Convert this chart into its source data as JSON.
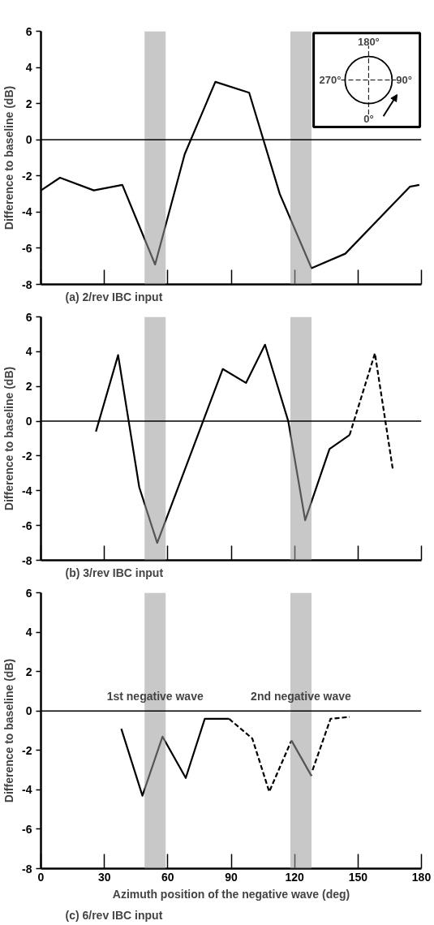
{
  "chart_data": [
    {
      "type": "line",
      "title": "(a)  2/rev IBC input",
      "ylabel": "Difference to baseline (dB)",
      "xlim": [
        0,
        180
      ],
      "ylim": [
        -8,
        6
      ],
      "xticks": [
        0,
        30,
        60,
        90,
        120,
        150,
        180
      ],
      "yticks": [
        -8,
        -6,
        -4,
        -2,
        0,
        2,
        4,
        6
      ],
      "tick_labels": "y",
      "grid": false,
      "line_style": "solid",
      "series": [
        {
          "color": "#000000",
          "x": [
            0,
            9,
            25,
            38.5,
            54,
            68,
            82.5,
            98.5,
            113,
            128,
            144,
            174.5,
            179
          ],
          "values": [
            -2.8,
            -2.1,
            -2.8,
            -2.5,
            -6.9,
            -0.8,
            3.2,
            2.6,
            -3.0,
            -7.1,
            -6.3,
            -2.6,
            -2.5
          ]
        }
      ],
      "ref_lines": [
        {
          "axis": "y",
          "value": 0,
          "color": "#000000"
        }
      ],
      "bands": [
        {
          "axis": "x",
          "from": 49,
          "to": 59,
          "color": "#9a9a9a"
        },
        {
          "axis": "x",
          "from": 118,
          "to": 128,
          "color": "#9a9a9a"
        }
      ],
      "annotations": [
        "180°",
        "90°",
        "0°",
        "270°"
      ]
    },
    {
      "type": "line",
      "title": "(b)  3/rev IBC input",
      "ylabel": "Difference to baseline (dB)",
      "xlim": [
        0,
        180
      ],
      "ylim": [
        -8,
        6
      ],
      "xticks": [
        0,
        30,
        60,
        90,
        120,
        150,
        180
      ],
      "yticks": [
        -8,
        -6,
        -4,
        -2,
        0,
        2,
        4,
        6
      ],
      "tick_labels": "y",
      "grid": false,
      "line_style": "solid",
      "series": [
        {
          "color": "#000000",
          "x": [
            26,
            36.5,
            46.5,
            55,
            86,
            97,
            106,
            117,
            125,
            136.5,
            146
          ],
          "values": [
            -0.6,
            3.8,
            -3.8,
            -7.0,
            3.0,
            2.2,
            4.4,
            0.0,
            -5.7,
            -1.6,
            -0.8
          ]
        },
        {
          "color": "#000000",
          "line_style": "dashed",
          "x": [
            146,
            158,
            166.5
          ],
          "values": [
            -0.8,
            3.9,
            -2.8
          ]
        }
      ],
      "ref_lines": [
        {
          "axis": "y",
          "value": 0,
          "color": "#000000"
        }
      ],
      "bands": [
        {
          "axis": "x",
          "from": 49,
          "to": 59,
          "color": "#9a9a9a"
        },
        {
          "axis": "x",
          "from": 118,
          "to": 128,
          "color": "#9a9a9a"
        }
      ]
    },
    {
      "type": "line",
      "title": "(c)  6/rev IBC input",
      "xlabel": "Azimuth position of the negative wave (deg)",
      "ylabel": "Difference to baseline (dB)",
      "xlim": [
        0,
        180
      ],
      "ylim": [
        -8,
        6
      ],
      "xticks": [
        0,
        30,
        60,
        90,
        120,
        150,
        180
      ],
      "yticks": [
        -8,
        -6,
        -4,
        -2,
        0,
        2,
        4,
        6
      ],
      "grid": false,
      "line_style": "solid",
      "series": [
        {
          "color": "#000000",
          "x": [
            38,
            48,
            57.5,
            68.5,
            77.5,
            89
          ],
          "values": [
            -0.9,
            -4.3,
            -1.3,
            -3.4,
            -0.4,
            -0.4
          ]
        },
        {
          "color": "#000000",
          "line_style": "dashed",
          "x": [
            89,
            100,
            108,
            118.5
          ],
          "values": [
            -0.4,
            -1.4,
            -4.1,
            -1.5
          ]
        },
        {
          "color": "#000000",
          "x": [
            118.5,
            128
          ],
          "values": [
            -1.5,
            -3.3
          ]
        },
        {
          "color": "#000000",
          "line_style": "dashed",
          "x": [
            128.5,
            137,
            146
          ],
          "values": [
            -3.0,
            -0.4,
            -0.3
          ]
        }
      ],
      "ref_lines": [
        {
          "axis": "y",
          "value": 0,
          "color": "#000000"
        }
      ],
      "bands": [
        {
          "axis": "x",
          "from": 49,
          "to": 59,
          "color": "#9a9a9a"
        },
        {
          "axis": "x",
          "from": 118,
          "to": 128,
          "color": "#9a9a9a"
        }
      ],
      "annotations": [
        "1st negative wave",
        "2nd negative wave"
      ]
    }
  ]
}
